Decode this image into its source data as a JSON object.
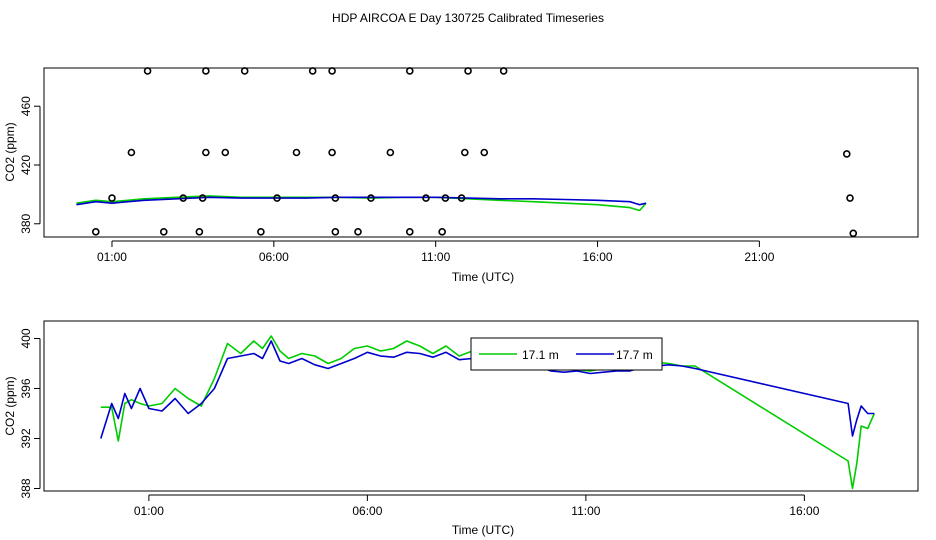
{
  "figure": {
    "title": "HDP AIRCOA E  Day 130725  Calibrated Timeseries"
  },
  "chart_data": [
    {
      "type": "scatter",
      "xlabel": "Time (UTC)",
      "ylabel": "CO2 (ppm)",
      "xlim": [
        -1.1,
        25.9
      ],
      "ylim": [
        371,
        486
      ],
      "x_ticks": [
        1,
        6,
        11,
        16,
        21
      ],
      "x_tick_labels": [
        "01:00",
        "06:00",
        "11:00",
        "16:00",
        "21:00"
      ],
      "y_ticks": [
        380,
        420,
        460
      ],
      "y_tick_labels": [
        "380",
        "420",
        "460"
      ],
      "grid": false,
      "colors": {
        "green": "#00cc00",
        "blue": "#0000cc",
        "points": "#000000"
      },
      "points": [
        [
          0.5,
          374.5
        ],
        [
          1.0,
          397.5
        ],
        [
          1.6,
          428.5
        ],
        [
          2.1,
          484
        ],
        [
          2.6,
          374.5
        ],
        [
          3.2,
          397.5
        ],
        [
          3.7,
          374.5
        ],
        [
          3.8,
          397.5
        ],
        [
          3.9,
          428.5
        ],
        [
          3.9,
          484
        ],
        [
          4.5,
          428.5
        ],
        [
          5.1,
          484
        ],
        [
          5.6,
          374.5
        ],
        [
          6.1,
          397.5
        ],
        [
          6.7,
          428.5
        ],
        [
          7.2,
          484
        ],
        [
          7.8,
          484
        ],
        [
          7.8,
          428.5
        ],
        [
          7.9,
          397.5
        ],
        [
          7.9,
          374.5
        ],
        [
          8.6,
          374.5
        ],
        [
          9.0,
          397.5
        ],
        [
          9.6,
          428.5
        ],
        [
          10.2,
          374.5
        ],
        [
          10.2,
          484
        ],
        [
          10.7,
          397.5
        ],
        [
          11.2,
          374.5
        ],
        [
          11.3,
          397.5
        ],
        [
          11.8,
          397.5
        ],
        [
          11.9,
          428.5
        ],
        [
          12.0,
          484
        ],
        [
          12.5,
          428.5
        ],
        [
          13.1,
          484
        ],
        [
          23.7,
          427.5
        ],
        [
          23.8,
          397.5
        ],
        [
          23.9,
          373.5
        ]
      ],
      "series": [
        {
          "color": "#00cc00",
          "x": [
            -0.1,
            0.5,
            1.0,
            1.5,
            2.0,
            3.0,
            4.0,
            5.0,
            6.0,
            7.0,
            8.0,
            9.0,
            10.0,
            11.0,
            12.0,
            13.0,
            14.0,
            15.0,
            16.0,
            17.0,
            17.3,
            17.5
          ],
          "y": [
            394,
            396,
            395,
            396,
            397,
            398,
            399,
            398,
            398,
            398,
            398,
            397.5,
            398,
            398,
            397,
            396,
            395,
            394,
            393,
            391,
            389,
            394
          ]
        },
        {
          "color": "#0000cc",
          "x": [
            -0.1,
            0.5,
            1.0,
            1.5,
            2.0,
            3.0,
            4.0,
            5.0,
            6.0,
            7.0,
            8.0,
            9.0,
            10.0,
            11.0,
            12.0,
            13.0,
            14.0,
            15.0,
            16.0,
            17.0,
            17.3,
            17.5
          ],
          "y": [
            393,
            395,
            394,
            395,
            396,
            397,
            398,
            397.5,
            397.5,
            397.5,
            398,
            398,
            398,
            398,
            397.5,
            397,
            397,
            396.5,
            396,
            395,
            393,
            394
          ]
        }
      ]
    },
    {
      "type": "line",
      "xlabel": "Time (UTC)",
      "ylabel": "CO2 (ppm)",
      "xlim": [
        -1.4,
        18.6
      ],
      "ylim": [
        387.8,
        401.4
      ],
      "x_ticks": [
        1,
        6,
        11,
        16
      ],
      "x_tick_labels": [
        "01:00",
        "06:00",
        "11:00",
        "16:00"
      ],
      "y_ticks": [
        388,
        392,
        396,
        400
      ],
      "y_tick_labels": [
        "388",
        "392",
        "396",
        "400"
      ],
      "grid": false,
      "legend": {
        "placement": "upper-center",
        "entries": [
          "17.1 m",
          "17.7 m"
        ],
        "colors": [
          "#00cc00",
          "#0000cc"
        ]
      },
      "series": [
        {
          "name": "17.1 m",
          "color": "#00cc00",
          "x": [
            -0.1,
            0.15,
            0.3,
            0.45,
            0.6,
            0.8,
            1.0,
            1.3,
            1.6,
            1.9,
            2.2,
            2.5,
            2.8,
            3.1,
            3.4,
            3.6,
            3.8,
            4.0,
            4.2,
            4.5,
            4.8,
            5.1,
            5.4,
            5.7,
            6.0,
            6.3,
            6.6,
            6.9,
            7.2,
            7.5,
            7.8,
            8.1,
            8.4,
            8.7,
            9.0,
            9.3,
            9.6,
            9.9,
            10.2,
            10.5,
            10.8,
            11.1,
            11.4,
            11.7,
            12.0,
            12.3,
            12.6,
            12.9,
            13.2,
            13.5,
            17.0,
            17.1,
            17.2,
            17.3,
            17.45,
            17.6
          ],
          "y": [
            394.5,
            394.5,
            391.8,
            394.8,
            395.1,
            394.8,
            394.6,
            394.8,
            396.0,
            395.2,
            394.6,
            396.8,
            399.6,
            398.8,
            399.8,
            399.2,
            400.2,
            399.0,
            398.4,
            398.8,
            398.6,
            398.0,
            398.4,
            399.2,
            399.4,
            399.0,
            399.2,
            399.8,
            399.4,
            398.8,
            399.4,
            398.6,
            399.0,
            398.8,
            398.2,
            398.4,
            398.0,
            398.1,
            397.8,
            397.6,
            397.5,
            397.4,
            397.6,
            397.5,
            397.6,
            397.9,
            398.1,
            398.0,
            397.8,
            397.8,
            390.2,
            388.0,
            390.0,
            393.0,
            392.8,
            394.0
          ]
        },
        {
          "name": "17.7 m",
          "color": "#0000cc",
          "x": [
            -0.1,
            0.15,
            0.3,
            0.45,
            0.6,
            0.8,
            1.0,
            1.3,
            1.6,
            1.9,
            2.2,
            2.5,
            2.8,
            3.1,
            3.4,
            3.6,
            3.8,
            4.0,
            4.2,
            4.5,
            4.8,
            5.1,
            5.4,
            5.7,
            6.0,
            6.3,
            6.6,
            6.9,
            7.2,
            7.5,
            7.8,
            8.1,
            8.4,
            8.7,
            9.0,
            9.3,
            9.6,
            9.9,
            10.2,
            10.5,
            10.8,
            11.1,
            11.4,
            11.7,
            12.0,
            12.3,
            12.6,
            12.9,
            13.2,
            13.5,
            17.0,
            17.1,
            17.2,
            17.3,
            17.45,
            17.6
          ],
          "y": [
            392.0,
            394.8,
            393.6,
            395.6,
            394.4,
            396.0,
            394.4,
            394.2,
            395.2,
            394.0,
            394.8,
            396.0,
            398.4,
            398.6,
            398.8,
            398.4,
            399.8,
            398.2,
            398.0,
            398.4,
            397.9,
            397.6,
            398.0,
            398.4,
            398.9,
            398.6,
            398.5,
            398.9,
            398.8,
            398.5,
            398.9,
            398.3,
            398.4,
            398.1,
            397.9,
            397.7,
            397.6,
            397.8,
            397.4,
            397.3,
            397.4,
            397.2,
            397.3,
            397.4,
            397.4,
            397.7,
            397.8,
            397.9,
            397.8,
            397.6,
            394.8,
            392.2,
            393.5,
            394.6,
            394.0,
            394.0
          ]
        }
      ]
    }
  ]
}
